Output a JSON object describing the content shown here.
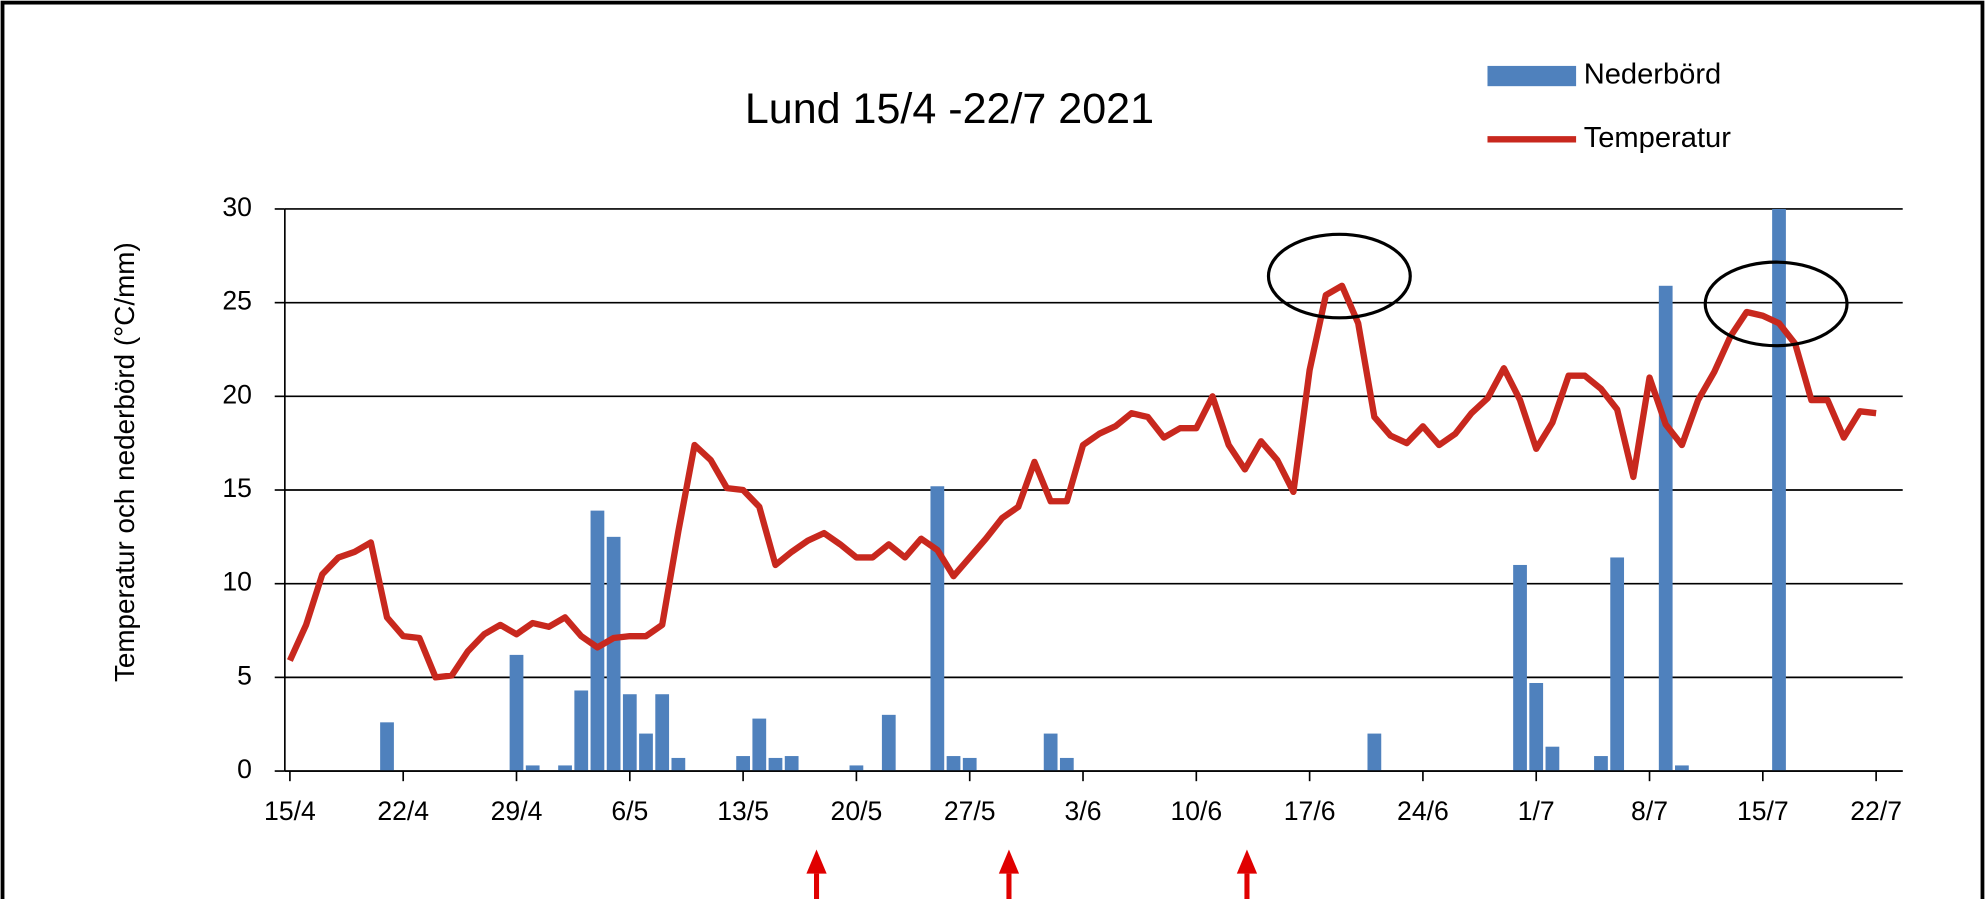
{
  "chart_data": {
    "type": "combo",
    "title": "Lund 15/4 -22/7 2021",
    "y_label": "Temperatur och nederbörd (°C/mm)",
    "x": [
      0,
      1,
      2,
      3,
      4,
      5,
      6,
      7,
      8,
      9,
      10,
      11,
      12,
      13,
      14,
      15,
      16,
      17,
      18,
      19,
      20,
      21,
      22,
      23,
      24,
      25,
      26,
      27,
      28,
      29,
      30,
      31,
      32,
      33,
      34,
      35,
      36,
      37,
      38,
      39,
      40,
      41,
      42,
      43,
      44,
      45,
      46,
      47,
      48,
      49,
      50,
      51,
      52,
      53,
      54,
      55,
      56,
      57,
      58,
      59,
      60,
      61,
      62,
      63,
      64,
      65,
      66,
      67,
      68,
      69,
      70,
      71,
      72,
      73,
      74,
      75,
      76,
      77,
      78,
      79,
      80,
      81,
      82,
      83,
      84,
      85,
      86,
      87,
      88,
      89,
      90,
      91,
      92,
      93,
      94,
      95,
      96,
      97,
      98
    ],
    "xlim": [
      0,
      98
    ],
    "xticks": [
      {
        "value": 0,
        "label": "15/4"
      },
      {
        "value": 7,
        "label": "22/4"
      },
      {
        "value": 14,
        "label": "29/4"
      },
      {
        "value": 21,
        "label": "6/5"
      },
      {
        "value": 28,
        "label": "13/5"
      },
      {
        "value": 35,
        "label": "20/5"
      },
      {
        "value": 42,
        "label": "27/5"
      },
      {
        "value": 49,
        "label": "3/6"
      },
      {
        "value": 56,
        "label": "10/6"
      },
      {
        "value": 63,
        "label": "17/6"
      },
      {
        "value": 70,
        "label": "24/6"
      },
      {
        "value": 77,
        "label": "1/7"
      },
      {
        "value": 84,
        "label": "8/7"
      },
      {
        "value": 91,
        "label": "15/7"
      },
      {
        "value": 98,
        "label": "22/7"
      }
    ],
    "ylim": [
      0,
      30
    ],
    "yticks": [
      0,
      5,
      10,
      15,
      20,
      25,
      30
    ],
    "grid": true,
    "legend": "top-right",
    "series": [
      {
        "name": "Nederbörd",
        "type": "bar",
        "color": "#4f81bd",
        "values": [
          0,
          0,
          0,
          0,
          0,
          0,
          2.6,
          0,
          0,
          0,
          0,
          0,
          0,
          0,
          6.2,
          0.3,
          0,
          0.3,
          4.3,
          13.9,
          12.5,
          4.1,
          2.0,
          4.1,
          0.7,
          0,
          0,
          0,
          0.8,
          2.8,
          0.7,
          0.8,
          0,
          0,
          0,
          0.3,
          0,
          3.0,
          0,
          0,
          15.2,
          0.8,
          0.7,
          0,
          0,
          0,
          0,
          2.0,
          0.7,
          0,
          0,
          0,
          0,
          0,
          0,
          0,
          0,
          0,
          0,
          0,
          0,
          0,
          0,
          0,
          0,
          0,
          0,
          2.0,
          0,
          0,
          0,
          0,
          0,
          0,
          0,
          0,
          11.0,
          4.7,
          1.3,
          0,
          0,
          0.8,
          11.4,
          0,
          0,
          25.9,
          0.3,
          0,
          0,
          0,
          0,
          0,
          30,
          0,
          0,
          0,
          0,
          0,
          0
        ]
      },
      {
        "name": "Temperatur",
        "type": "line",
        "color": "#c8281e",
        "values": [
          5.9,
          7.8,
          10.5,
          11.4,
          11.7,
          12.2,
          8.2,
          7.2,
          7.1,
          5.0,
          5.1,
          6.4,
          7.3,
          7.8,
          7.3,
          7.9,
          7.7,
          8.2,
          7.2,
          6.6,
          7.1,
          7.2,
          7.2,
          7.8,
          12.8,
          17.4,
          16.6,
          15.1,
          15.0,
          14.1,
          11.0,
          11.7,
          12.3,
          12.7,
          12.1,
          11.4,
          11.4,
          12.1,
          11.4,
          12.4,
          11.8,
          10.4,
          11.4,
          12.4,
          13.5,
          14.1,
          16.5,
          14.4,
          14.4,
          17.4,
          18.0,
          18.4,
          19.1,
          18.9,
          17.8,
          18.3,
          18.3,
          20.0,
          17.4,
          16.1,
          17.6,
          16.6,
          14.9,
          21.4,
          25.4,
          25.9,
          23.9,
          18.9,
          17.9,
          17.5,
          18.4,
          17.4,
          18.0,
          19.1,
          19.9,
          21.5,
          19.8,
          17.2,
          18.6,
          21.1,
          21.1,
          20.4,
          19.3,
          15.7,
          21.0,
          18.5,
          17.4,
          19.8,
          21.3,
          23.2,
          24.5,
          24.3,
          23.9,
          22.8,
          19.8,
          19.8,
          17.8,
          19.2,
          19.1
        ]
      }
    ]
  }
}
